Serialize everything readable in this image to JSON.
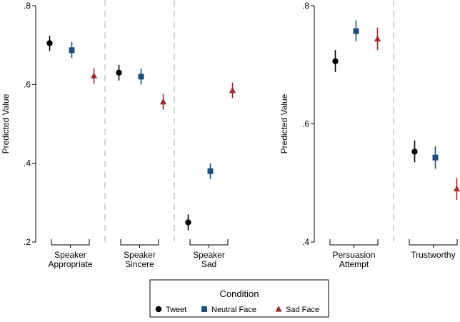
{
  "chart_data": [
    {
      "type": "scatter",
      "ylabel": "Predicted Value",
      "ylim": [
        0.2,
        0.8
      ],
      "yticks": [
        0.2,
        0.4,
        0.6,
        0.8
      ],
      "ytick_labels": [
        ".2",
        ".4",
        ".6",
        ".8"
      ],
      "groups": [
        {
          "label": [
            "Speaker",
            "Appropriate"
          ],
          "points": [
            {
              "series": 0,
              "value": 0.705,
              "lo": 0.685,
              "hi": 0.724
            },
            {
              "series": 1,
              "value": 0.687,
              "lo": 0.667,
              "hi": 0.708
            },
            {
              "series": 2,
              "value": 0.622,
              "lo": 0.602,
              "hi": 0.641
            }
          ]
        },
        {
          "label": [
            "Speaker",
            "Sincere"
          ],
          "points": [
            {
              "series": 0,
              "value": 0.63,
              "lo": 0.61,
              "hi": 0.65
            },
            {
              "series": 1,
              "value": 0.62,
              "lo": 0.6,
              "hi": 0.64
            },
            {
              "series": 2,
              "value": 0.556,
              "lo": 0.536,
              "hi": 0.576
            }
          ]
        },
        {
          "label": [
            "Speaker",
            "Sad"
          ],
          "points": [
            {
              "series": 0,
              "value": 0.25,
              "lo": 0.23,
              "hi": 0.27
            },
            {
              "series": 1,
              "value": 0.38,
              "lo": 0.36,
              "hi": 0.4
            },
            {
              "series": 2,
              "value": 0.585,
              "lo": 0.565,
              "hi": 0.605
            }
          ]
        }
      ]
    },
    {
      "type": "scatter",
      "ylabel": "Predicted Value",
      "ylim": [
        0.4,
        0.8
      ],
      "yticks": [
        0.4,
        0.6,
        0.8
      ],
      "ytick_labels": [
        ".4",
        ".6",
        ".8"
      ],
      "groups": [
        {
          "label": [
            "Persuasion",
            "Attempt"
          ],
          "points": [
            {
              "series": 0,
              "value": 0.706,
              "lo": 0.688,
              "hi": 0.725
            },
            {
              "series": 1,
              "value": 0.757,
              "lo": 0.74,
              "hi": 0.775
            },
            {
              "series": 2,
              "value": 0.744,
              "lo": 0.725,
              "hi": 0.763
            }
          ]
        },
        {
          "label": [
            "Trustworthy"
          ],
          "points": [
            {
              "series": 0,
              "value": 0.553,
              "lo": 0.535,
              "hi": 0.572
            },
            {
              "series": 1,
              "value": 0.543,
              "lo": 0.524,
              "hi": 0.562
            },
            {
              "series": 2,
              "value": 0.49,
              "lo": 0.471,
              "hi": 0.509
            }
          ]
        }
      ]
    }
  ],
  "series": [
    {
      "name": "Tweet",
      "color": "#000000",
      "marker": "circle"
    },
    {
      "name": "Neutral Face",
      "color": "#1f4e79",
      "marker": "square"
    },
    {
      "name": "Sad Face",
      "color": "#9b2d30",
      "marker": "triangle"
    }
  ],
  "legend": {
    "title": "Condition",
    "placement": "bottom"
  }
}
